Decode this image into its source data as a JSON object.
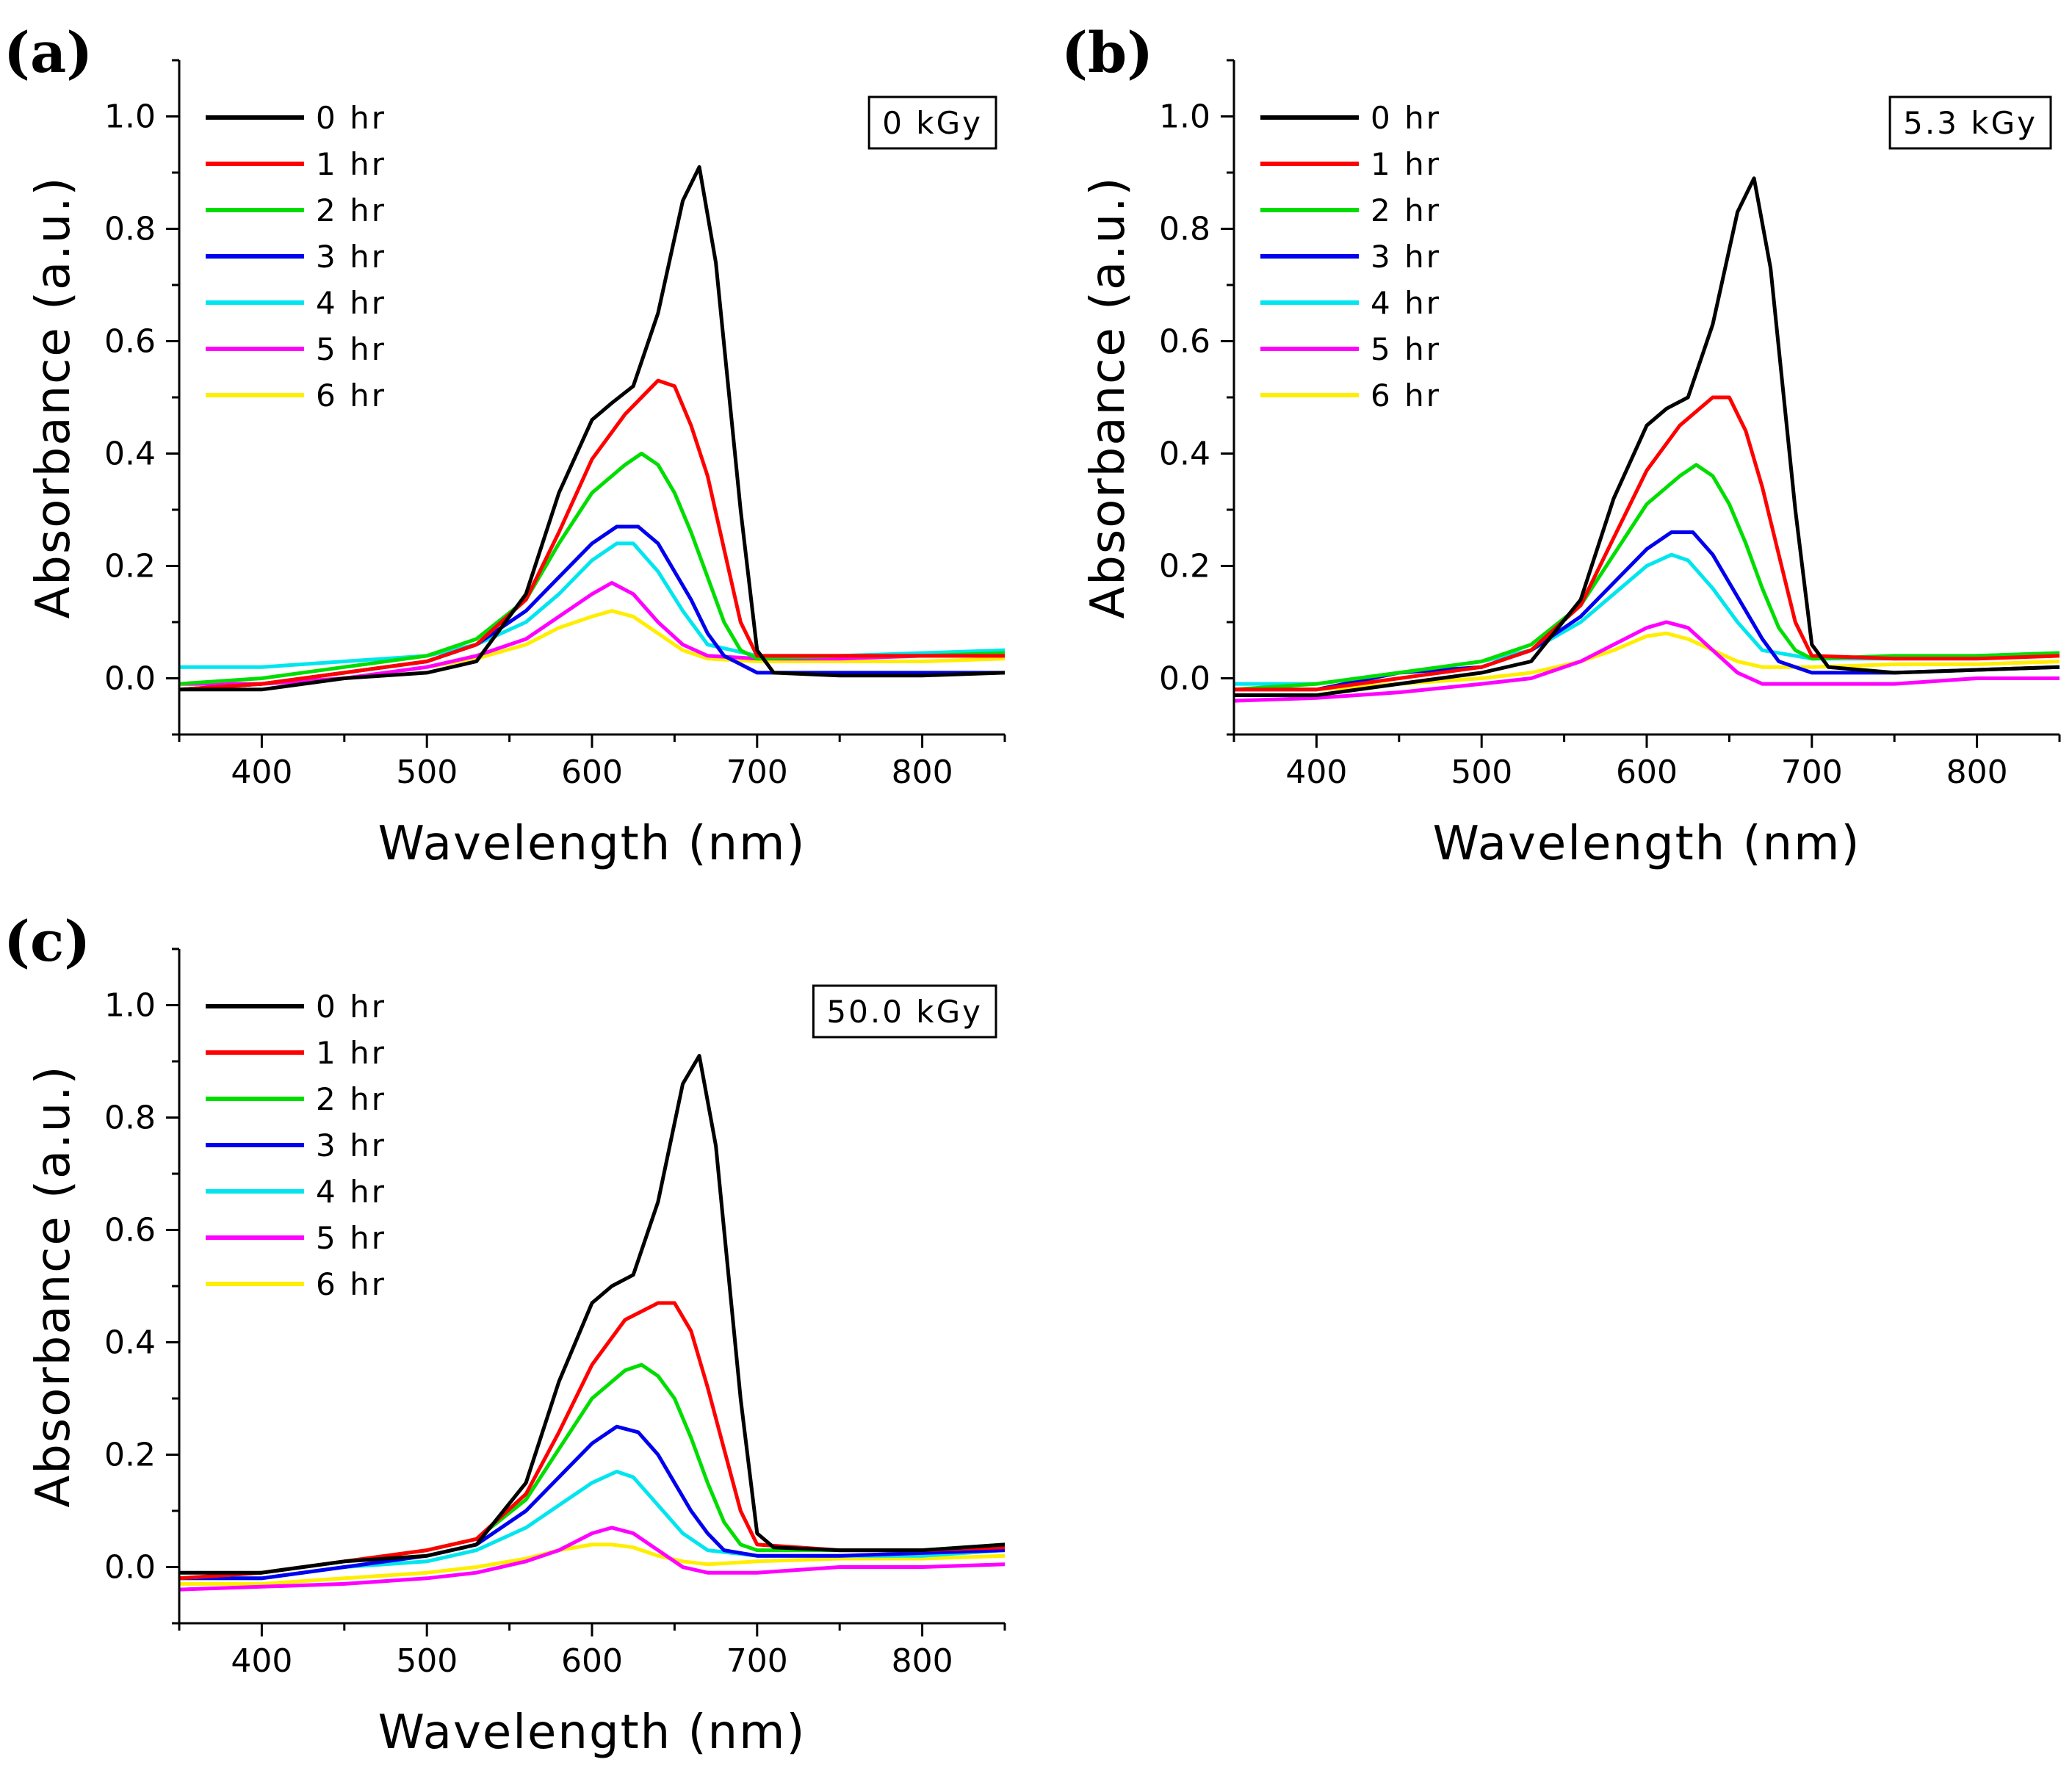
{
  "figure": {
    "colors": [
      "#000000",
      "#ff0000",
      "#00dd00",
      "#0000ee",
      "#00e5ee",
      "#ff00ff",
      "#ffee00"
    ],
    "panels": [
      {
        "letter": "(a)",
        "dose": "0 kGy",
        "letters_top": true
      },
      {
        "letter": "(b)",
        "dose": "5.3 kGy"
      },
      {
        "letter": "(c)",
        "dose": "50.0 kGy"
      }
    ]
  },
  "chart_data": [
    {
      "type": "line",
      "panel": "(a)",
      "annotation": "0 kGy",
      "xlabel": "Wavelength (nm)",
      "ylabel": "Absorbance (a.u.)",
      "xlim": [
        350,
        850
      ],
      "ylim": [
        -0.1,
        1.1
      ],
      "xticks": [
        400,
        500,
        600,
        700,
        800
      ],
      "xtick_labels": [
        "400",
        "500",
        "600",
        "700",
        "800"
      ],
      "yticks": [
        0.0,
        0.2,
        0.4,
        0.6,
        0.8,
        1.0
      ],
      "ytick_labels": [
        "0.0",
        "0.2",
        "0.4",
        "0.6",
        "0.8",
        "1.0"
      ],
      "legend": "top-left",
      "series": [
        {
          "name": "0 hr",
          "x": [
            350,
            400,
            450,
            500,
            530,
            560,
            580,
            600,
            612,
            625,
            640,
            655,
            665,
            675,
            690,
            700,
            710,
            750,
            800,
            850
          ],
          "y": [
            -0.02,
            -0.02,
            0.0,
            0.01,
            0.03,
            0.15,
            0.33,
            0.46,
            0.49,
            0.52,
            0.65,
            0.85,
            0.91,
            0.74,
            0.3,
            0.05,
            0.01,
            0.005,
            0.005,
            0.01
          ]
        },
        {
          "name": "1 hr",
          "x": [
            350,
            400,
            450,
            500,
            530,
            560,
            580,
            600,
            620,
            640,
            650,
            660,
            670,
            680,
            690,
            700,
            750,
            800,
            850
          ],
          "y": [
            -0.02,
            -0.01,
            0.01,
            0.03,
            0.06,
            0.14,
            0.26,
            0.39,
            0.47,
            0.53,
            0.52,
            0.45,
            0.36,
            0.23,
            0.1,
            0.04,
            0.04,
            0.04,
            0.04
          ]
        },
        {
          "name": "2 hr",
          "x": [
            350,
            400,
            450,
            500,
            530,
            560,
            580,
            600,
            620,
            630,
            640,
            650,
            660,
            670,
            680,
            690,
            700,
            750,
            800,
            850
          ],
          "y": [
            -0.01,
            0.0,
            0.02,
            0.04,
            0.07,
            0.14,
            0.24,
            0.33,
            0.38,
            0.4,
            0.38,
            0.33,
            0.26,
            0.18,
            0.1,
            0.05,
            0.035,
            0.04,
            0.04,
            0.045
          ]
        },
        {
          "name": "3 hr",
          "x": [
            350,
            400,
            450,
            500,
            530,
            560,
            580,
            600,
            615,
            628,
            640,
            650,
            660,
            670,
            680,
            700,
            750,
            800,
            850
          ],
          "y": [
            -0.02,
            -0.01,
            0.01,
            0.03,
            0.06,
            0.12,
            0.18,
            0.24,
            0.27,
            0.27,
            0.24,
            0.19,
            0.14,
            0.08,
            0.04,
            0.01,
            0.01,
            0.01,
            0.01
          ]
        },
        {
          "name": "4 hr",
          "x": [
            350,
            400,
            450,
            500,
            530,
            560,
            580,
            600,
            615,
            625,
            640,
            655,
            670,
            700,
            750,
            800,
            850
          ],
          "y": [
            0.02,
            0.02,
            0.03,
            0.04,
            0.06,
            0.1,
            0.15,
            0.21,
            0.24,
            0.24,
            0.19,
            0.12,
            0.06,
            0.04,
            0.04,
            0.045,
            0.05
          ]
        },
        {
          "name": "5 hr",
          "x": [
            350,
            400,
            450,
            500,
            530,
            560,
            580,
            600,
            612,
            625,
            640,
            655,
            670,
            700,
            750,
            800,
            850
          ],
          "y": [
            -0.01,
            -0.01,
            0.0,
            0.02,
            0.04,
            0.07,
            0.11,
            0.15,
            0.17,
            0.15,
            0.1,
            0.06,
            0.04,
            0.035,
            0.035,
            0.04,
            0.04
          ]
        },
        {
          "name": "6 hr",
          "x": [
            350,
            400,
            450,
            500,
            530,
            560,
            580,
            600,
            612,
            625,
            640,
            655,
            670,
            700,
            750,
            800,
            850
          ],
          "y": [
            -0.01,
            -0.01,
            0.0,
            0.02,
            0.035,
            0.06,
            0.09,
            0.11,
            0.12,
            0.11,
            0.08,
            0.05,
            0.035,
            0.03,
            0.03,
            0.03,
            0.035
          ]
        }
      ]
    },
    {
      "type": "line",
      "panel": "(b)",
      "annotation": "5.3 kGy",
      "xlabel": "Wavelength (nm)",
      "ylabel": "Absorbance (a.u.)",
      "xlim": [
        350,
        850
      ],
      "ylim": [
        -0.1,
        1.1
      ],
      "xticks": [
        400,
        500,
        600,
        700,
        800
      ],
      "xtick_labels": [
        "400",
        "500",
        "600",
        "700",
        "800"
      ],
      "yticks": [
        0.0,
        0.2,
        0.4,
        0.6,
        0.8,
        1.0
      ],
      "ytick_labels": [
        "0.0",
        "0.2",
        "0.4",
        "0.6",
        "0.8",
        "1.0"
      ],
      "legend": "top-left",
      "series": [
        {
          "name": "0 hr",
          "x": [
            350,
            400,
            450,
            500,
            530,
            560,
            580,
            600,
            612,
            625,
            640,
            655,
            665,
            675,
            690,
            700,
            710,
            750,
            800,
            850
          ],
          "y": [
            -0.03,
            -0.03,
            -0.01,
            0.01,
            0.03,
            0.14,
            0.32,
            0.45,
            0.48,
            0.5,
            0.63,
            0.83,
            0.89,
            0.73,
            0.3,
            0.06,
            0.02,
            0.01,
            0.015,
            0.02
          ]
        },
        {
          "name": "1 hr",
          "x": [
            350,
            400,
            450,
            500,
            530,
            560,
            580,
            600,
            620,
            640,
            650,
            660,
            670,
            680,
            690,
            700,
            750,
            800,
            850
          ],
          "y": [
            -0.02,
            -0.02,
            0.0,
            0.02,
            0.05,
            0.13,
            0.25,
            0.37,
            0.45,
            0.5,
            0.5,
            0.44,
            0.34,
            0.22,
            0.1,
            0.04,
            0.035,
            0.035,
            0.04
          ]
        },
        {
          "name": "2 hr",
          "x": [
            350,
            400,
            450,
            500,
            530,
            560,
            580,
            600,
            620,
            630,
            640,
            650,
            660,
            670,
            680,
            690,
            700,
            750,
            800,
            850
          ],
          "y": [
            -0.02,
            -0.01,
            0.01,
            0.03,
            0.06,
            0.13,
            0.22,
            0.31,
            0.36,
            0.38,
            0.36,
            0.31,
            0.24,
            0.16,
            0.09,
            0.05,
            0.035,
            0.04,
            0.04,
            0.045
          ]
        },
        {
          "name": "3 hr",
          "x": [
            350,
            400,
            450,
            500,
            530,
            560,
            580,
            600,
            615,
            628,
            640,
            650,
            660,
            670,
            680,
            700,
            750,
            800,
            850
          ],
          "y": [
            -0.02,
            -0.02,
            0.01,
            0.02,
            0.05,
            0.11,
            0.17,
            0.23,
            0.26,
            0.26,
            0.22,
            0.17,
            0.12,
            0.07,
            0.03,
            0.01,
            0.01,
            0.015,
            0.02
          ]
        },
        {
          "name": "4 hr",
          "x": [
            350,
            400,
            450,
            500,
            530,
            560,
            580,
            600,
            615,
            625,
            640,
            655,
            670,
            700,
            750,
            800,
            850
          ],
          "y": [
            -0.01,
            -0.01,
            0.01,
            0.03,
            0.05,
            0.1,
            0.15,
            0.2,
            0.22,
            0.21,
            0.16,
            0.1,
            0.05,
            0.035,
            0.035,
            0.04,
            0.045
          ]
        },
        {
          "name": "5 hr",
          "x": [
            350,
            400,
            450,
            500,
            530,
            560,
            580,
            600,
            612,
            625,
            640,
            655,
            670,
            700,
            750,
            800,
            850
          ],
          "y": [
            -0.04,
            -0.035,
            -0.025,
            -0.01,
            0.0,
            0.03,
            0.06,
            0.09,
            0.1,
            0.09,
            0.05,
            0.01,
            -0.01,
            -0.01,
            -0.01,
            0.0,
            0.0
          ]
        },
        {
          "name": "6 hr",
          "x": [
            350,
            400,
            450,
            500,
            530,
            560,
            580,
            600,
            612,
            625,
            640,
            655,
            670,
            700,
            750,
            800,
            850
          ],
          "y": [
            -0.02,
            -0.02,
            -0.01,
            0.0,
            0.01,
            0.03,
            0.05,
            0.075,
            0.08,
            0.07,
            0.05,
            0.03,
            0.02,
            0.02,
            0.025,
            0.025,
            0.03
          ]
        }
      ]
    },
    {
      "type": "line",
      "panel": "(c)",
      "annotation": "50.0 kGy",
      "xlabel": "Wavelength (nm)",
      "ylabel": "Absorbance (a.u.)",
      "xlim": [
        350,
        850
      ],
      "ylim": [
        -0.1,
        1.1
      ],
      "xticks": [
        400,
        500,
        600,
        700,
        800
      ],
      "xtick_labels": [
        "400",
        "500",
        "600",
        "700",
        "800"
      ],
      "yticks": [
        0.0,
        0.2,
        0.4,
        0.6,
        0.8,
        1.0
      ],
      "ytick_labels": [
        "0.0",
        "0.2",
        "0.4",
        "0.6",
        "0.8",
        "1.0"
      ],
      "legend": "top-left",
      "series": [
        {
          "name": "0 hr",
          "x": [
            350,
            400,
            450,
            500,
            530,
            560,
            580,
            600,
            612,
            625,
            640,
            655,
            665,
            675,
            690,
            700,
            710,
            750,
            800,
            850
          ],
          "y": [
            -0.01,
            -0.01,
            0.01,
            0.02,
            0.04,
            0.15,
            0.33,
            0.47,
            0.5,
            0.52,
            0.65,
            0.86,
            0.91,
            0.75,
            0.3,
            0.06,
            0.035,
            0.03,
            0.03,
            0.04
          ]
        },
        {
          "name": "1 hr",
          "x": [
            350,
            400,
            450,
            500,
            530,
            560,
            580,
            600,
            620,
            640,
            650,
            660,
            670,
            680,
            690,
            700,
            750,
            800,
            850
          ],
          "y": [
            -0.02,
            -0.01,
            0.01,
            0.03,
            0.05,
            0.13,
            0.24,
            0.36,
            0.44,
            0.47,
            0.47,
            0.42,
            0.32,
            0.21,
            0.1,
            0.04,
            0.03,
            0.03,
            0.035
          ]
        },
        {
          "name": "2 hr",
          "x": [
            350,
            400,
            450,
            500,
            530,
            560,
            580,
            600,
            620,
            630,
            640,
            650,
            660,
            670,
            680,
            690,
            700,
            750,
            800,
            850
          ],
          "y": [
            -0.02,
            -0.01,
            0.01,
            0.03,
            0.05,
            0.12,
            0.21,
            0.3,
            0.35,
            0.36,
            0.34,
            0.3,
            0.23,
            0.15,
            0.08,
            0.04,
            0.03,
            0.03,
            0.03,
            0.04
          ]
        },
        {
          "name": "3 hr",
          "x": [
            350,
            400,
            450,
            500,
            530,
            560,
            580,
            600,
            615,
            628,
            640,
            650,
            660,
            670,
            680,
            700,
            750,
            800,
            850
          ],
          "y": [
            -0.02,
            -0.02,
            0.0,
            0.02,
            0.04,
            0.1,
            0.16,
            0.22,
            0.25,
            0.24,
            0.2,
            0.15,
            0.1,
            0.06,
            0.03,
            0.02,
            0.02,
            0.025,
            0.03
          ]
        },
        {
          "name": "4 hr",
          "x": [
            350,
            400,
            450,
            500,
            530,
            560,
            580,
            600,
            615,
            625,
            640,
            655,
            670,
            700,
            750,
            800,
            850
          ],
          "y": [
            -0.02,
            -0.02,
            0.0,
            0.01,
            0.03,
            0.07,
            0.11,
            0.15,
            0.17,
            0.16,
            0.11,
            0.06,
            0.03,
            0.02,
            0.02,
            0.02,
            0.03
          ]
        },
        {
          "name": "5 hr",
          "x": [
            350,
            400,
            450,
            500,
            530,
            560,
            580,
            600,
            612,
            625,
            640,
            655,
            670,
            700,
            750,
            800,
            850
          ],
          "y": [
            -0.04,
            -0.035,
            -0.03,
            -0.02,
            -0.01,
            0.01,
            0.03,
            0.06,
            0.07,
            0.06,
            0.03,
            0.0,
            -0.01,
            -0.01,
            0.0,
            0.0,
            0.005
          ]
        },
        {
          "name": "6 hr",
          "x": [
            350,
            400,
            450,
            500,
            530,
            560,
            580,
            600,
            612,
            625,
            640,
            655,
            670,
            700,
            750,
            800,
            850
          ],
          "y": [
            -0.03,
            -0.03,
            -0.02,
            -0.01,
            0.0,
            0.015,
            0.03,
            0.04,
            0.04,
            0.035,
            0.02,
            0.01,
            0.005,
            0.01,
            0.015,
            0.015,
            0.02
          ]
        }
      ]
    }
  ]
}
